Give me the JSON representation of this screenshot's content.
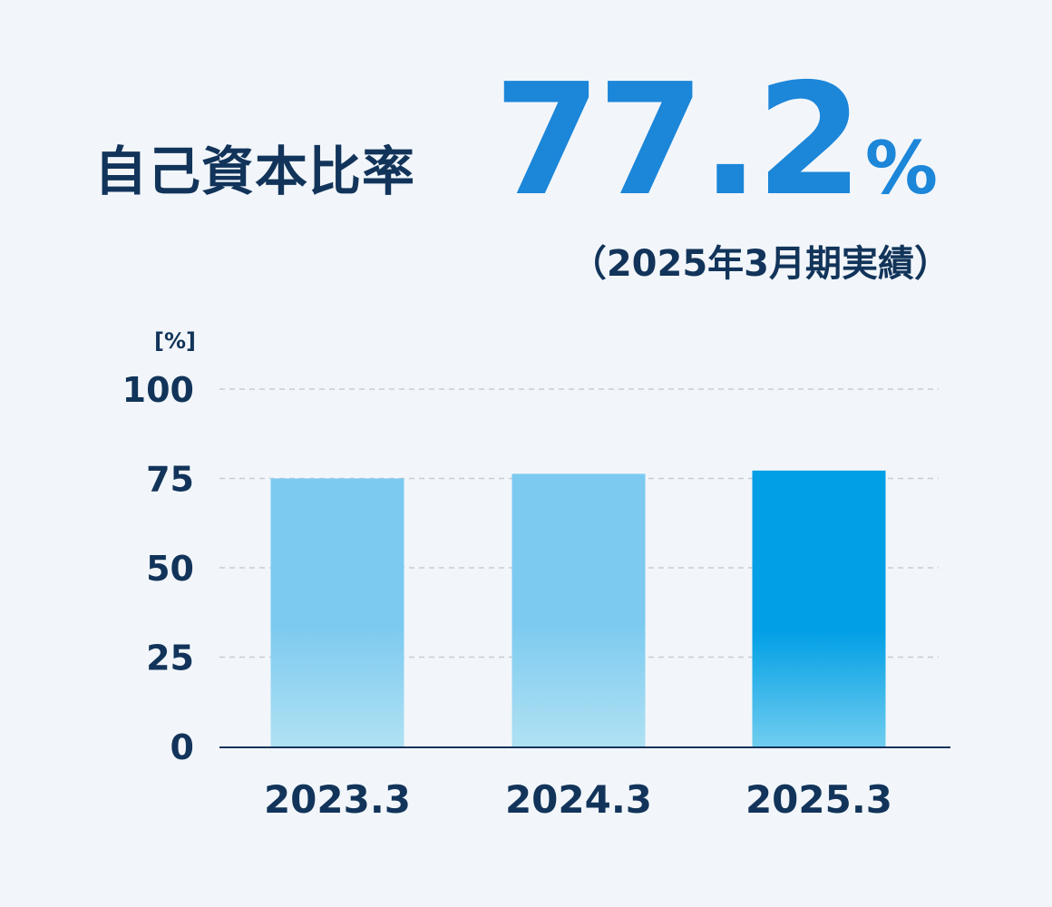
{
  "header": {
    "title": "自己資本比率",
    "headline_value": "77.2",
    "headline_unit": "%",
    "note": "（2025年3月期実績）"
  },
  "colors": {
    "text": "#12345a",
    "accent": "#1c86d9",
    "bar_light_top": "#7ccaf0",
    "bar_light_bottom": "#b0e1f3",
    "bar_highlight_top": "#019fe5",
    "bar_highlight_bottom": "#6fcdef"
  },
  "chart_data": {
    "type": "bar",
    "ylabel": "[%]",
    "categories": [
      "2023.3",
      "2024.3",
      "2025.3"
    ],
    "values": [
      75.0,
      76.3,
      77.2
    ],
    "highlight_index": 2,
    "ylim": [
      0,
      100
    ],
    "yticks": [
      0,
      25,
      50,
      75,
      100
    ],
    "grid": true
  }
}
